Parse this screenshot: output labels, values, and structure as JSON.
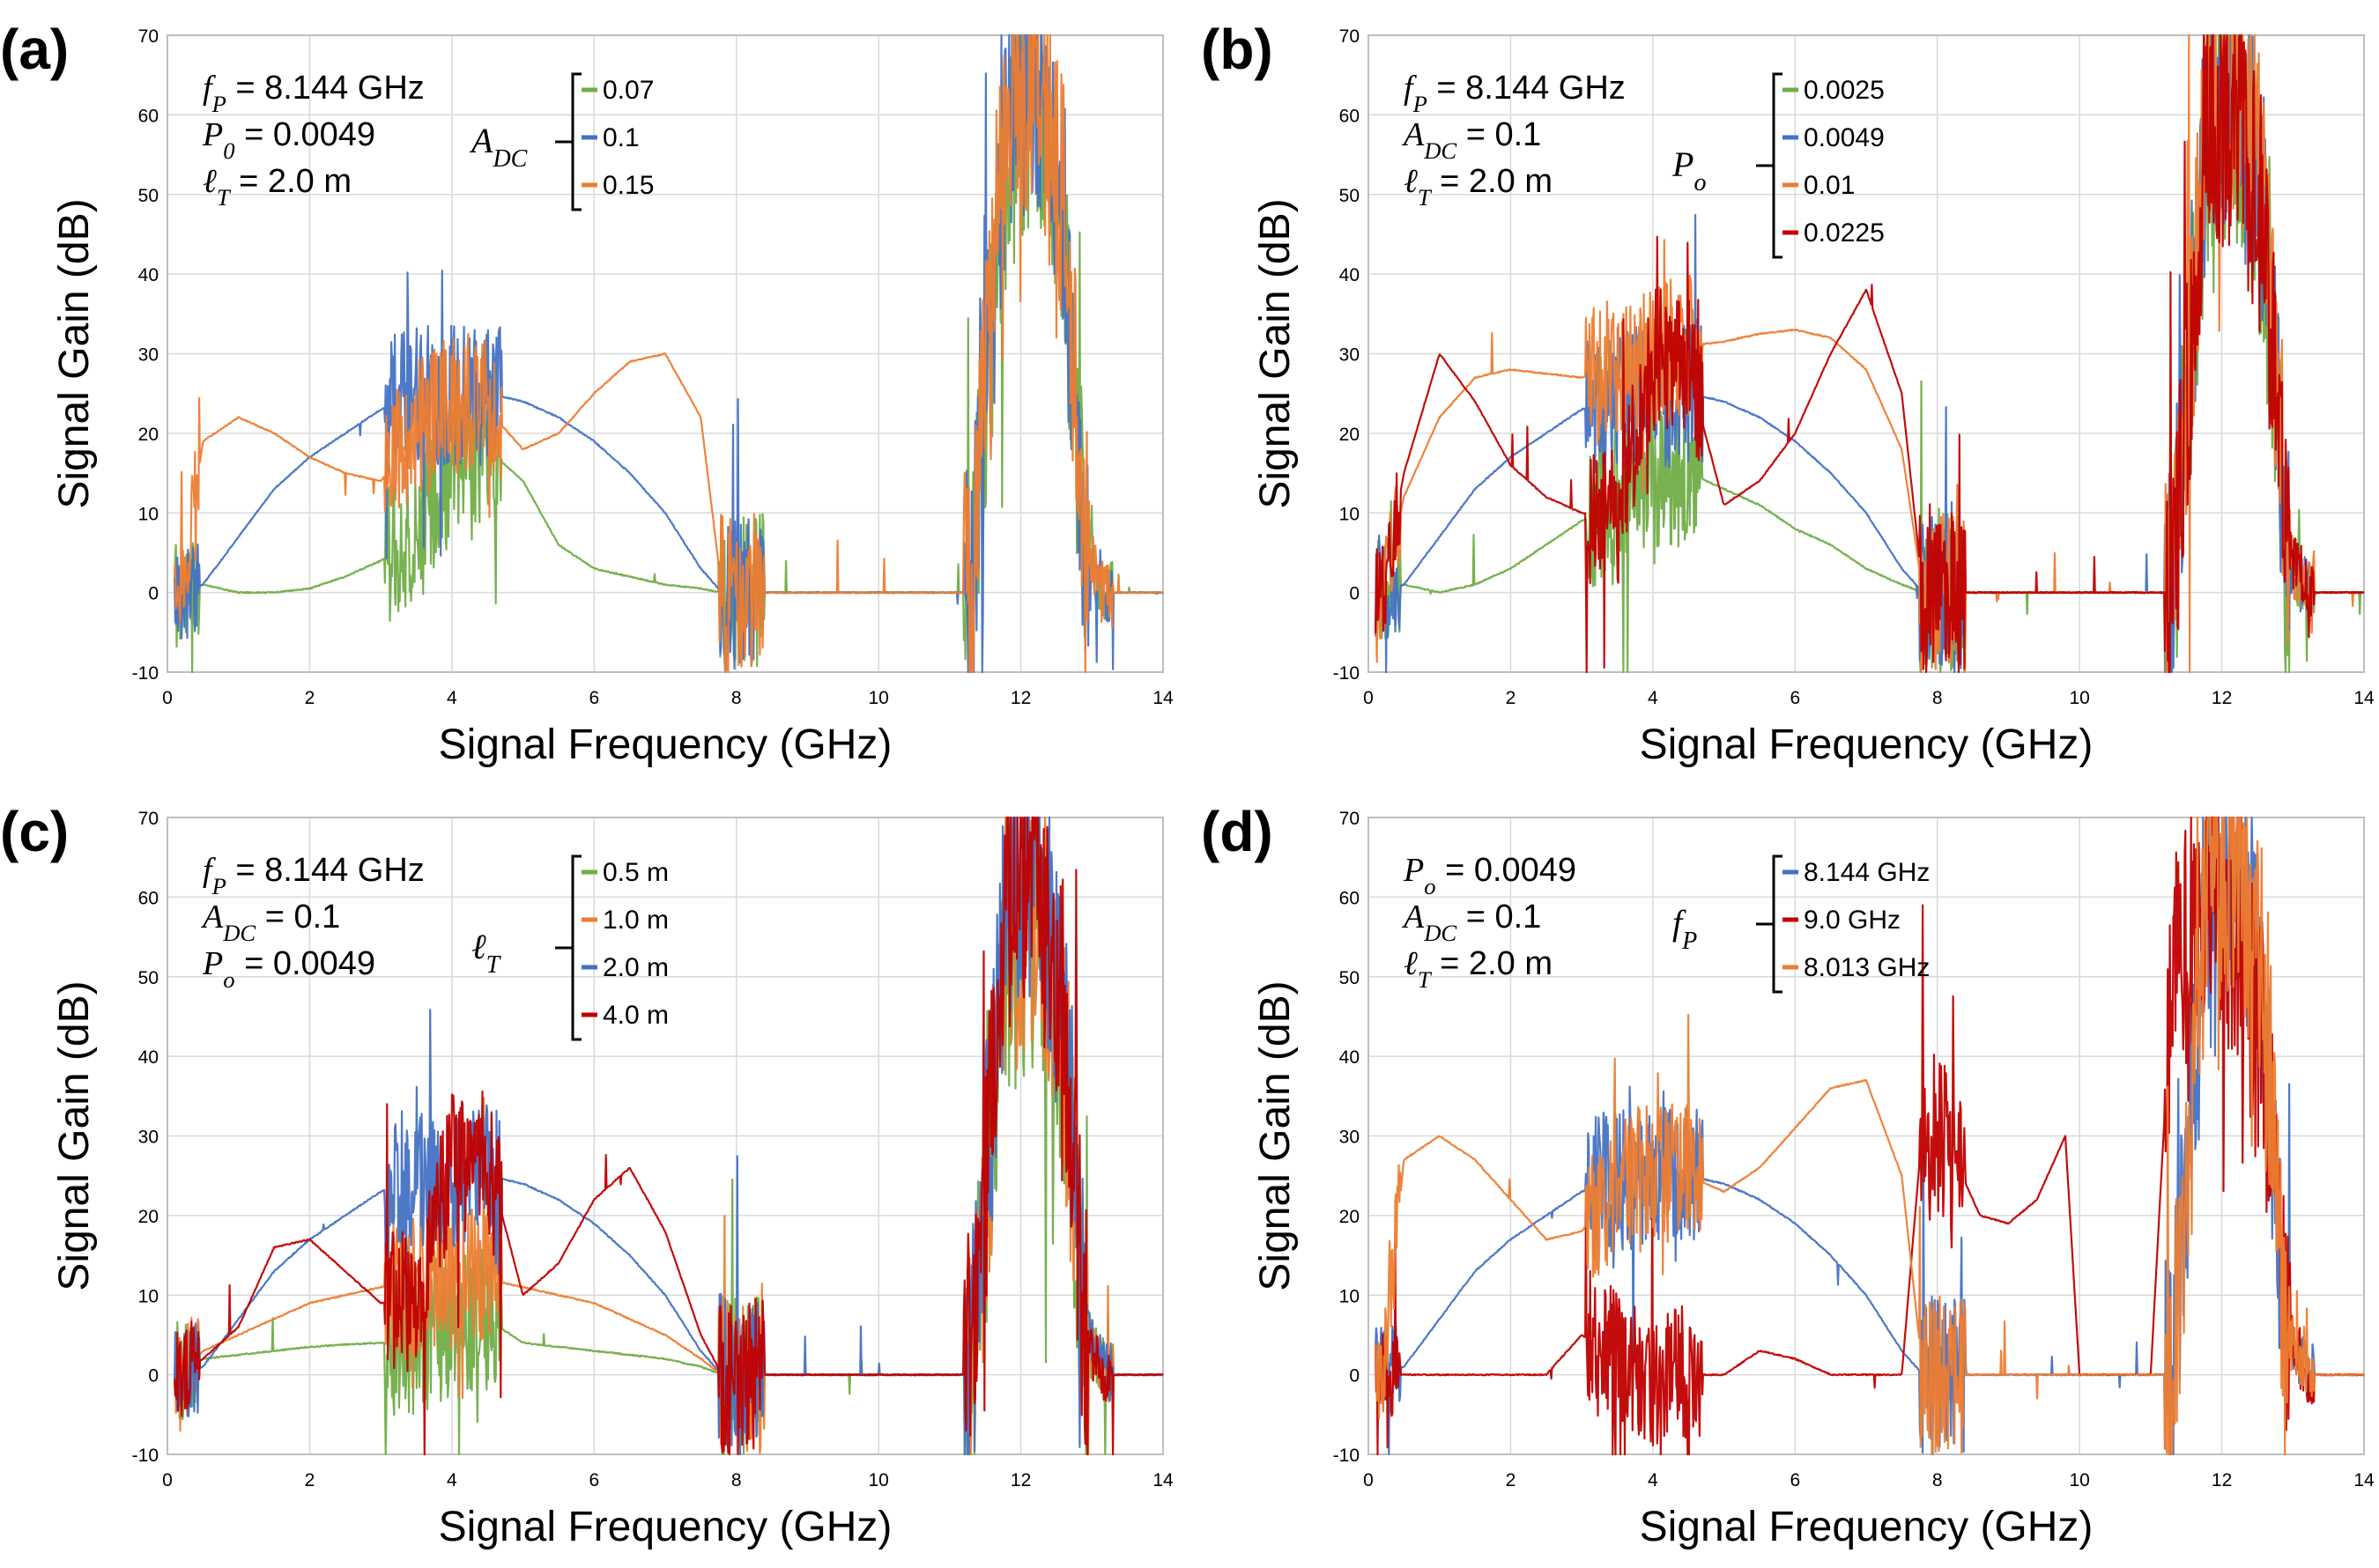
{
  "chart_data": [
    {
      "type": "line",
      "panel_tag": "(a)",
      "xlabel": "Signal Frequency (GHz)",
      "ylabel": "Signal Gain (dB)",
      "xlim": [
        0,
        14
      ],
      "ylim": [
        -10,
        70
      ],
      "xticks": [
        "0",
        "2",
        "4",
        "6",
        "8",
        "10",
        "12",
        "14"
      ],
      "yticks": [
        "-10",
        "0",
        "10",
        "20",
        "30",
        "40",
        "50",
        "60",
        "70"
      ],
      "annotations": [
        "f_P = 8.144 GHz",
        "P_0 = 0.0049",
        "ℓ_T = 2.0 m"
      ],
      "legend_title": "A_DC",
      "series": [
        {
          "name": "0.07",
          "color": "#70ad47",
          "x": [
            0.2,
            0.5,
            1,
            1.5,
            2,
            2.5,
            3,
            3.5,
            4,
            4.5,
            5,
            5.5,
            6,
            6.5,
            7,
            7.5,
            7.8,
            8.2,
            9,
            10,
            11,
            11.3,
            11.8,
            12.2,
            12.6,
            12.9,
            13.2,
            14
          ],
          "y": [
            0,
            1,
            0,
            0,
            0.5,
            2,
            4,
            7,
            15,
            18,
            14,
            6,
            3,
            2,
            1,
            0.5,
            0,
            0,
            0,
            0,
            0,
            0,
            55,
            62,
            45,
            5,
            0,
            0
          ]
        },
        {
          "name": "0.1",
          "color": "#4472c4",
          "x": [
            0.2,
            0.5,
            1,
            1.5,
            2,
            2.5,
            3,
            3.5,
            4,
            4.5,
            5,
            5.5,
            6,
            6.5,
            7,
            7.5,
            7.8,
            8.2,
            9,
            10,
            11,
            11.3,
            11.8,
            12.2,
            12.6,
            12.9,
            13.2,
            14
          ],
          "y": [
            0,
            1,
            7,
            13,
            17,
            20,
            23,
            24.5,
            24.5,
            25,
            24,
            22,
            19,
            15,
            10,
            3,
            0,
            0,
            0,
            0,
            0,
            0,
            60,
            64,
            48,
            5,
            0,
            0
          ]
        },
        {
          "name": "0.15",
          "color": "#ed7d31",
          "x": [
            0.2,
            0.5,
            1,
            1.5,
            2,
            2.5,
            3,
            3.5,
            4,
            4.5,
            5,
            5.5,
            6,
            6.5,
            7,
            7.5,
            7.8,
            8.2,
            9,
            10,
            11,
            11.3,
            11.8,
            12.2,
            12.6,
            12.9,
            13.2,
            14
          ],
          "y": [
            0,
            19,
            22,
            20,
            17,
            15,
            14,
            20,
            24,
            23,
            18,
            20,
            25,
            29,
            30,
            22,
            0,
            0,
            0,
            0,
            0,
            0,
            64,
            62,
            50,
            5,
            0,
            0
          ]
        }
      ]
    },
    {
      "type": "line",
      "panel_tag": "(b)",
      "xlabel": "Signal Frequency (GHz)",
      "ylabel": "Signal Gain (dB)",
      "xlim": [
        0,
        14
      ],
      "ylim": [
        -10,
        70
      ],
      "xticks": [
        "0",
        "2",
        "4",
        "6",
        "8",
        "10",
        "12",
        "14"
      ],
      "yticks": [
        "-10",
        "0",
        "10",
        "20",
        "30",
        "40",
        "50",
        "60",
        "70"
      ],
      "annotations": [
        "f_P = 8.144 GHz",
        "A_DC = 0.1",
        "ℓ_T = 2.0 m"
      ],
      "legend_title": "P_o",
      "series": [
        {
          "name": "0.0025",
          "color": "#70ad47",
          "x": [
            0.2,
            0.5,
            1,
            1.5,
            2,
            2.5,
            3,
            3.5,
            4,
            4.5,
            5,
            5.5,
            6,
            6.5,
            7,
            7.5,
            7.8,
            8.2,
            9,
            10,
            11,
            11.3,
            11.8,
            12.2,
            12.6,
            12.9,
            13.2,
            14
          ],
          "y": [
            0,
            1,
            0,
            1,
            3,
            6,
            9,
            11,
            14,
            15,
            13,
            11,
            8,
            6,
            3,
            1,
            0,
            0,
            0,
            0,
            0,
            0,
            55,
            60,
            45,
            5,
            0,
            0
          ]
        },
        {
          "name": "0.0049",
          "color": "#4472c4",
          "x": [
            0.2,
            0.5,
            1,
            1.5,
            2,
            2.5,
            3,
            3.5,
            4,
            4.5,
            5,
            5.5,
            6,
            6.5,
            7,
            7.5,
            7.8,
            8.2,
            9,
            10,
            11,
            11.3,
            11.8,
            12.2,
            12.6,
            12.9,
            13.2,
            14
          ],
          "y": [
            0,
            1,
            7,
            13,
            17,
            20,
            23,
            24.5,
            24.5,
            25,
            24,
            22,
            19,
            15,
            10,
            3,
            0,
            0,
            0,
            0,
            0,
            0,
            60,
            64,
            48,
            5,
            0,
            0
          ]
        },
        {
          "name": "0.01",
          "color": "#ed7d31",
          "x": [
            0.2,
            0.5,
            1,
            1.5,
            2,
            2.5,
            3,
            3.5,
            4,
            4.5,
            5,
            5.5,
            6,
            6.5,
            7,
            7.5,
            7.8,
            8.2,
            9,
            10,
            11,
            11.3,
            11.8,
            12.2,
            12.6,
            12.9,
            13.2,
            14
          ],
          "y": [
            0,
            12,
            22,
            27,
            28,
            27.5,
            27,
            28,
            30,
            31,
            31.5,
            32.5,
            33,
            32,
            28,
            18,
            0,
            0,
            0,
            0,
            0,
            0,
            62,
            64,
            50,
            5,
            0,
            0
          ]
        },
        {
          "name": "0.0225",
          "color": "#c00000",
          "x": [
            0.2,
            0.5,
            1,
            1.5,
            2,
            2.5,
            3,
            3.5,
            4,
            4.5,
            5,
            5.5,
            6,
            6.5,
            7,
            7.5,
            7.8,
            8.2,
            9,
            10,
            11,
            11.3,
            11.8,
            12.2,
            12.6,
            12.9,
            13.2,
            14
          ],
          "y": [
            0,
            15,
            30,
            24,
            16,
            12,
            10,
            9,
            30,
            28,
            11,
            14,
            20,
            30,
            38,
            25,
            0,
            0,
            0,
            0,
            0,
            0,
            60,
            58,
            45,
            8,
            0,
            0
          ]
        }
      ]
    },
    {
      "type": "line",
      "panel_tag": "(c)",
      "xlabel": "Signal Frequency (GHz)",
      "ylabel": "Signal Gain (dB)",
      "xlim": [
        0,
        14
      ],
      "ylim": [
        -10,
        70
      ],
      "xticks": [
        "0",
        "2",
        "4",
        "6",
        "8",
        "10",
        "12",
        "14"
      ],
      "yticks": [
        "-10",
        "0",
        "10",
        "20",
        "30",
        "40",
        "50",
        "60",
        "70"
      ],
      "annotations": [
        "f_P = 8.144 GHz",
        "A_DC = 0.1",
        "P_o = 0.0049"
      ],
      "legend_title": "ℓ_T",
      "series": [
        {
          "name": "0.5 m",
          "color": "#70ad47",
          "x": [
            0.2,
            0.5,
            1,
            1.5,
            2,
            2.5,
            3,
            3.5,
            4,
            4.5,
            5,
            5.5,
            6,
            6.5,
            7,
            7.5,
            7.8,
            8.2,
            9,
            10,
            11,
            11.3,
            11.8,
            12.2,
            12.6,
            12.9,
            13.2,
            14
          ],
          "y": [
            0,
            2,
            2.5,
            3,
            3.5,
            3.8,
            4,
            4,
            6,
            7,
            4,
            3.5,
            3,
            2.5,
            2,
            1,
            0,
            0,
            0,
            0,
            0,
            0,
            50,
            55,
            40,
            5,
            0,
            0
          ]
        },
        {
          "name": "1.0 m",
          "color": "#ed7d31",
          "x": [
            0.2,
            0.5,
            1,
            1.5,
            2,
            2.5,
            3,
            3.5,
            4,
            4.5,
            5,
            5.5,
            6,
            6.5,
            7,
            7.5,
            7.8,
            8.2,
            9,
            10,
            11,
            11.3,
            11.8,
            12.2,
            12.6,
            12.9,
            13.2,
            14
          ],
          "y": [
            0,
            3,
            5,
            7,
            9,
            10,
            11,
            11.5,
            12,
            12,
            11,
            10,
            9,
            7,
            5,
            2,
            0,
            0,
            0,
            0,
            0,
            0,
            52,
            58,
            42,
            5,
            0,
            0
          ]
        },
        {
          "name": "2.0 m",
          "color": "#4472c4",
          "x": [
            0.2,
            0.5,
            1,
            1.5,
            2,
            2.5,
            3,
            3.5,
            4,
            4.5,
            5,
            5.5,
            6,
            6.5,
            7,
            7.5,
            7.8,
            8.2,
            9,
            10,
            11,
            11.3,
            11.8,
            12.2,
            12.6,
            12.9,
            13.2,
            14
          ],
          "y": [
            0,
            1,
            7,
            13,
            17,
            20,
            23,
            24.5,
            24.5,
            25,
            24,
            22,
            19,
            15,
            10,
            3,
            0,
            0,
            0,
            0,
            0,
            0,
            60,
            64,
            48,
            5,
            0,
            0
          ]
        },
        {
          "name": "4.0 m",
          "color": "#c00000",
          "x": [
            0.2,
            0.5,
            1,
            1.5,
            2,
            2.5,
            3,
            3.5,
            4,
            4.5,
            5,
            5.5,
            6,
            6.5,
            7,
            7.5,
            7.8,
            8.2,
            9,
            10,
            11,
            11.3,
            11.8,
            12.2,
            12.6,
            12.9,
            13.2,
            14
          ],
          "y": [
            0,
            2,
            6,
            16,
            17,
            13,
            9,
            9,
            27,
            27,
            10,
            14,
            22,
            26,
            18,
            5,
            0,
            0,
            0,
            0,
            0,
            0,
            58,
            62,
            46,
            5,
            0,
            0
          ]
        }
      ]
    },
    {
      "type": "line",
      "panel_tag": "(d)",
      "xlabel": "Signal Frequency (GHz)",
      "ylabel": "Signal Gain (dB)",
      "xlim": [
        0,
        14
      ],
      "ylim": [
        -10,
        70
      ],
      "xticks": [
        "0",
        "2",
        "4",
        "6",
        "8",
        "10",
        "12",
        "14"
      ],
      "yticks": [
        "-10",
        "0",
        "10",
        "20",
        "30",
        "40",
        "50",
        "60",
        "70"
      ],
      "annotations": [
        "P_o = 0.0049",
        "A_DC = 0.1",
        "ℓ_T = 2.0 m"
      ],
      "legend_title": "f_P",
      "series": [
        {
          "name": "8.144 GHz",
          "color": "#4472c4",
          "x": [
            0.2,
            0.5,
            1,
            1.5,
            2,
            2.5,
            3,
            3.5,
            4,
            4.5,
            5,
            5.5,
            6,
            6.5,
            7,
            7.5,
            7.8,
            8.2,
            9,
            10,
            11,
            11.3,
            11.8,
            12.2,
            12.6,
            12.9,
            13.2,
            14
          ],
          "y": [
            0,
            1,
            7,
            13,
            17,
            20,
            23,
            24.5,
            24.5,
            25,
            24,
            22,
            19,
            15,
            10,
            3,
            0,
            0,
            0,
            0,
            0,
            0,
            60,
            64,
            48,
            5,
            0,
            0
          ]
        },
        {
          "name": "9.0 GHz",
          "color": "#c00000",
          "x": [
            0.2,
            0.5,
            1,
            1.5,
            2,
            2.5,
            3,
            3.5,
            4,
            4.5,
            5,
            5.5,
            6,
            6.5,
            7,
            7.5,
            7.8,
            8.2,
            8.6,
            9,
            9.4,
            9.8,
            10,
            11,
            11.3,
            11.8,
            12.2,
            12.6,
            12.9,
            13.2,
            14
          ],
          "y": [
            0,
            0,
            0,
            0,
            0,
            0,
            5,
            2,
            0,
            0,
            0,
            3,
            2,
            0,
            0,
            0,
            32,
            28,
            20,
            19,
            22,
            30,
            0,
            0,
            50,
            62,
            55,
            40,
            5,
            0,
            0
          ]
        },
        {
          "name": "8.013 GHz",
          "color": "#ed7d31",
          "x": [
            0.2,
            0.5,
            1,
            1.5,
            2,
            2.5,
            3,
            3.5,
            4,
            4.5,
            5,
            5.5,
            6,
            6.5,
            7,
            7.5,
            7.8,
            8.2,
            9,
            10,
            11,
            11.3,
            11.8,
            12.2,
            12.6,
            12.9,
            13.2,
            14
          ],
          "y": [
            0,
            27,
            30,
            27,
            22,
            17,
            18,
            24,
            26,
            25,
            23,
            26,
            31,
            36,
            37,
            25,
            0,
            0,
            0,
            0,
            0,
            0,
            62,
            64,
            50,
            5,
            0,
            0
          ]
        }
      ]
    }
  ]
}
